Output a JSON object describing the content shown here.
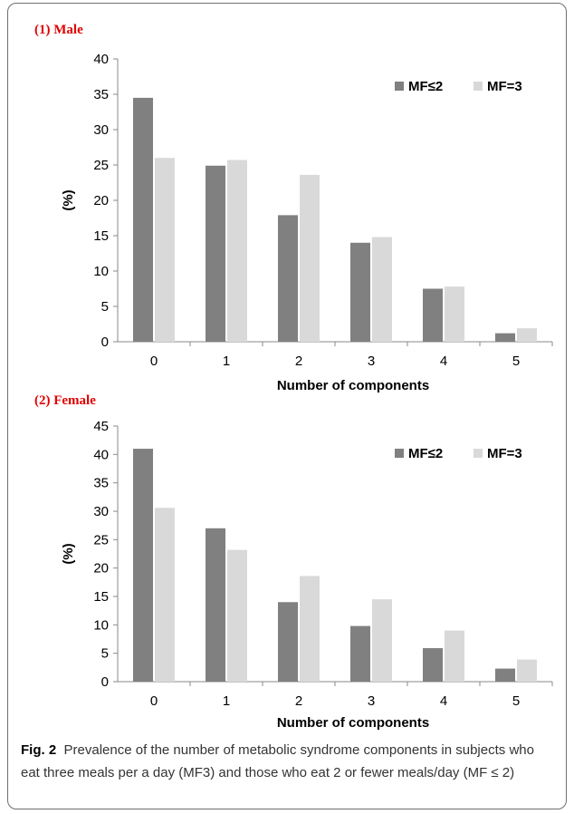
{
  "chart_data": [
    {
      "type": "bar",
      "panel_label": "(1)  Male",
      "categories": [
        "0",
        "1",
        "2",
        "3",
        "4",
        "5"
      ],
      "series": [
        {
          "name": "MF≤2",
          "values": [
            34.5,
            24.9,
            17.9,
            14.0,
            7.5,
            1.2
          ]
        },
        {
          "name": "MF=3",
          "values": [
            26.0,
            25.7,
            23.6,
            14.8,
            7.8,
            1.9
          ]
        }
      ],
      "ylabel": "(%)",
      "xlabel": "Number of components",
      "ylim": [
        0,
        40
      ],
      "yticks": [
        0,
        5,
        10,
        15,
        20,
        25,
        30,
        35,
        40
      ],
      "grid": false,
      "legend": "top-right",
      "colors": {
        "MF≤2": "#808080",
        "MF=3": "#d9d9d9"
      }
    },
    {
      "type": "bar",
      "panel_label": "(2)  Female",
      "categories": [
        "0",
        "1",
        "2",
        "3",
        "4",
        "5"
      ],
      "series": [
        {
          "name": "MF≤2",
          "values": [
            41.0,
            27.0,
            14.0,
            9.8,
            5.9,
            2.3
          ]
        },
        {
          "name": "MF=3",
          "values": [
            30.6,
            23.2,
            18.6,
            14.5,
            9.0,
            3.9
          ]
        }
      ],
      "ylabel": "(%)",
      "xlabel": "Number of components",
      "ylim": [
        0,
        45
      ],
      "yticks": [
        0,
        5,
        10,
        15,
        20,
        25,
        30,
        35,
        40,
        45
      ],
      "grid": false,
      "legend": "top-right",
      "colors": {
        "MF≤2": "#808080",
        "MF=3": "#d9d9d9"
      }
    }
  ],
  "caption": {
    "label": "Fig. 2",
    "text": "Prevalence of the number of metabolic syndrome components in subjects who eat three meals per a day (MF3) and those who eat 2 or fewer meals/day (MF ≤ 2)"
  }
}
